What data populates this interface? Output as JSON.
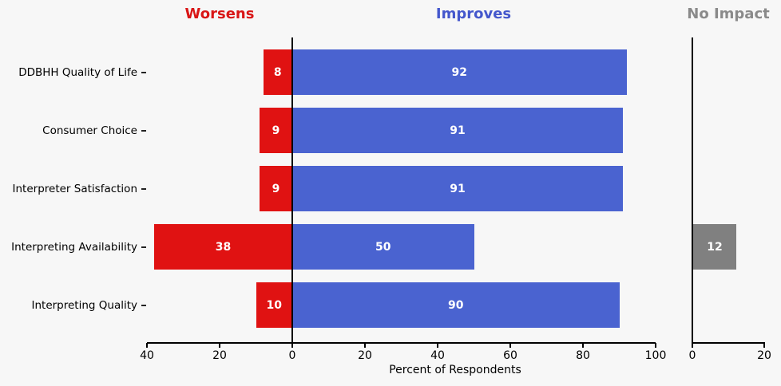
{
  "headers": {
    "worsens": "Worsens",
    "improves": "Improves",
    "no_impact": "No Impact"
  },
  "colors": {
    "background": "#f7f7f7",
    "worsens_bar": "#e01212",
    "improves_bar": "#4a63d0",
    "no_impact_bar": "#808080",
    "header_worsens": "#d91616",
    "header_improves": "#4457cc",
    "header_no_impact": "#8a8a8a",
    "axis": "#000000",
    "bar_value_label": "#ffffff",
    "tick_mark": "#222222"
  },
  "chart_data": {
    "type": "bar",
    "orientation": "horizontal_diverging",
    "title": "",
    "xlabel": "Percent of Respondents",
    "categories": [
      "DDBHH Quality of Life",
      "Consumer Choice",
      "Interpreter Satisfaction",
      "Interpreting Availability",
      "Interpreting Quality"
    ],
    "series": [
      {
        "name": "Worsens",
        "color": "#e01212",
        "panel": "main-left",
        "values": [
          8,
          9,
          9,
          38,
          10
        ]
      },
      {
        "name": "Improves",
        "color": "#4a63d0",
        "panel": "main-right",
        "values": [
          92,
          91,
          91,
          50,
          90
        ]
      },
      {
        "name": "No Impact",
        "color": "#808080",
        "panel": "side",
        "values": [
          0,
          0,
          0,
          12,
          0
        ]
      }
    ],
    "bar_value_labels_shown": true,
    "main_axis": {
      "range": [
        -40,
        100
      ],
      "ticks": [
        -40,
        -20,
        0,
        20,
        40,
        60,
        80,
        100
      ],
      "tick_labels": [
        "40",
        "20",
        "0",
        "20",
        "40",
        "60",
        "80",
        "100"
      ],
      "zero_line": true
    },
    "side_axis": {
      "range": [
        0,
        20
      ],
      "ticks": [
        0,
        20
      ],
      "tick_labels": [
        "0",
        "20"
      ]
    },
    "grid": false,
    "legend_position": "column-headers-top"
  }
}
